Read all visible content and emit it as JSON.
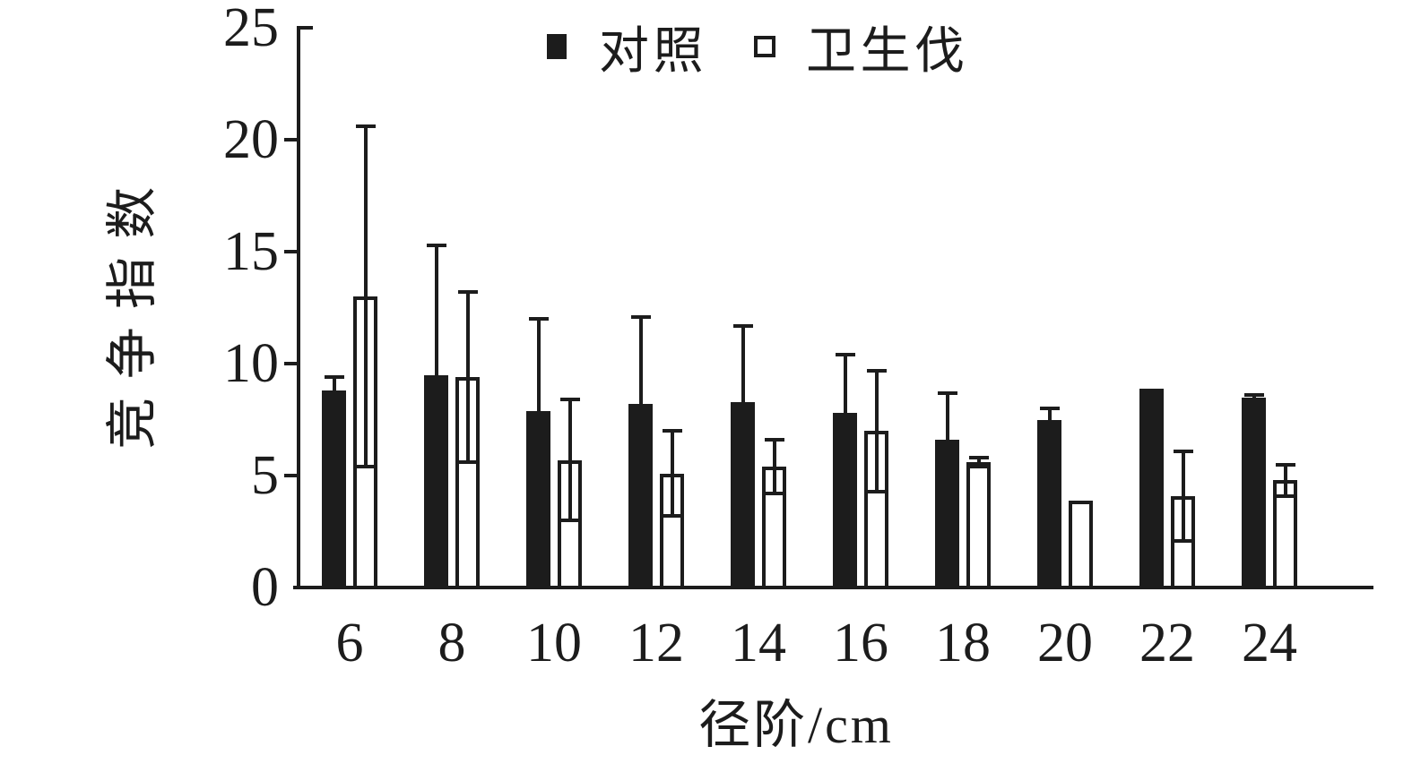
{
  "chart_data": {
    "type": "bar",
    "title": "",
    "xlabel": "径阶/cm",
    "ylabel": "竞争指数",
    "categories": [
      "6",
      "8",
      "10",
      "12",
      "14",
      "16",
      "18",
      "20",
      "22",
      "24"
    ],
    "y_ticks": [
      0,
      5,
      10,
      15,
      20,
      25
    ],
    "ylim": [
      0,
      25
    ],
    "grid": false,
    "legend_position": "top-center",
    "series": [
      {
        "key": "control",
        "name": "对照",
        "style": "filled",
        "color": "#1c1c1c",
        "error_style": "up",
        "values": [
          8.8,
          9.5,
          7.9,
          8.2,
          8.3,
          7.8,
          6.6,
          7.5,
          8.9,
          8.5
        ],
        "errors": [
          0.6,
          5.8,
          4.1,
          3.9,
          3.4,
          2.6,
          2.1,
          0.5,
          0,
          0.1
        ]
      },
      {
        "key": "sanitation-cut",
        "name": "卫生伐",
        "style": "open",
        "color": "#ffffff",
        "border_color": "#1c1c1c",
        "error_style": "both",
        "values": [
          13.0,
          9.4,
          5.7,
          5.1,
          5.4,
          7.0,
          5.6,
          3.9,
          4.1,
          4.8
        ],
        "errors": [
          7.6,
          3.8,
          2.7,
          1.9,
          1.2,
          2.7,
          0.2,
          0,
          2.0,
          0.7
        ]
      }
    ]
  },
  "colors": {
    "ink": "#1c1c1c",
    "background": "#ffffff"
  }
}
